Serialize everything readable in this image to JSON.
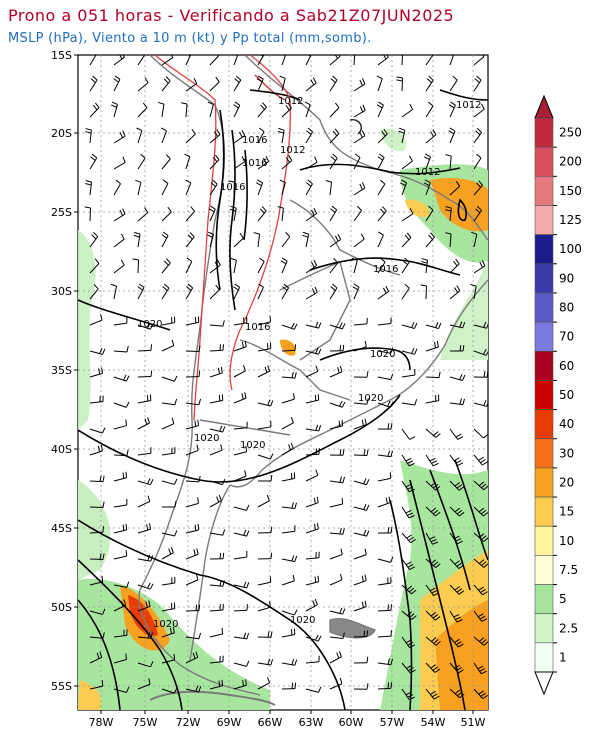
{
  "header": {
    "title": "Prono a 051 horas - Verificando a Sab21Z07JUN2025",
    "subtitle": "MSLP (hPa), Viento a 10 m (kt) y Pp total (mm,somb)."
  },
  "map": {
    "lat_labels": [
      "15S",
      "20S",
      "25S",
      "30S",
      "35S",
      "40S",
      "45S",
      "50S",
      "55S"
    ],
    "lon_labels": [
      "78W",
      "75W",
      "72W",
      "69W",
      "66W",
      "63W",
      "60W",
      "57W",
      "54W",
      "51W"
    ],
    "isobar_labels": [
      {
        "text": "1012"
      },
      {
        "text": "1012"
      },
      {
        "text": "1012"
      },
      {
        "text": "1012"
      },
      {
        "text": "1016"
      },
      {
        "text": "1016"
      },
      {
        "text": "1016"
      },
      {
        "text": "1016"
      },
      {
        "text": "1016"
      },
      {
        "text": "1020"
      },
      {
        "text": "1020"
      },
      {
        "text": "1020"
      },
      {
        "text": "1020"
      },
      {
        "text": "1020"
      },
      {
        "text": "1020"
      },
      {
        "text": "1020"
      }
    ]
  },
  "colorbar": {
    "labels": [
      "250",
      "200",
      "150",
      "125",
      "100",
      "90",
      "80",
      "70",
      "60",
      "50",
      "40",
      "30",
      "20",
      "15",
      "10",
      "7.5",
      "5",
      "2.5",
      "1"
    ],
    "colors": [
      "#c0283c",
      "#d8505e",
      "#e87880",
      "#f4aaaa",
      "#1c1c8c",
      "#3a3aa8",
      "#5a5ac4",
      "#7a7ae0",
      "#a8001e",
      "#c80000",
      "#e83c00",
      "#f47018",
      "#f8a020",
      "#fccc50",
      "#fff4a0",
      "#ffffd8",
      "#a8e6a0",
      "#d0f2c8",
      "#f0fff0"
    ],
    "top_color": "#a81e32"
  }
}
